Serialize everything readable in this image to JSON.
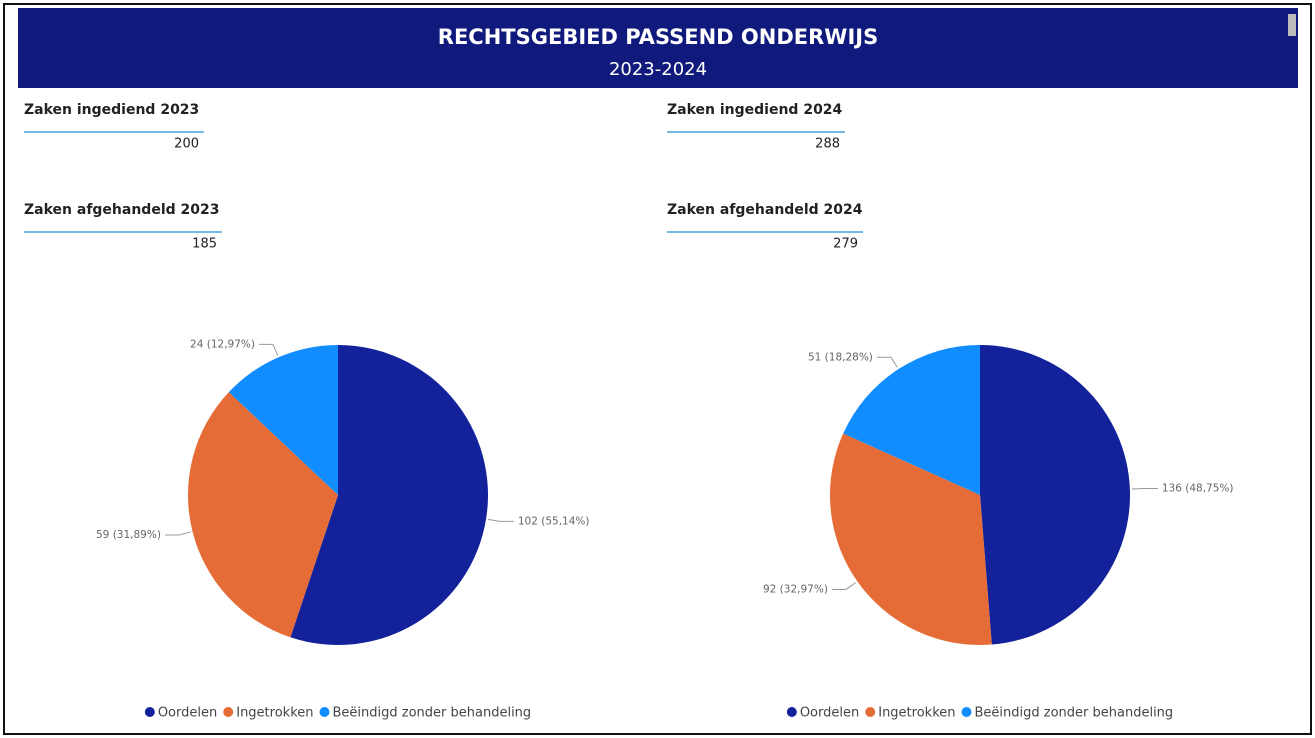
{
  "header": {
    "title": "RECHTSGEBIED PASSEND ONDERWIJS",
    "subtitle": "2023-2024"
  },
  "kpis": [
    {
      "label": "Zaken ingediend 2023",
      "value": 200
    },
    {
      "label": "Zaken afgehandeld 2023",
      "value": 185
    },
    {
      "label": "Zaken ingediend 2024",
      "value": 288
    },
    {
      "label": "Zaken afgehandeld 2024",
      "value": 279
    }
  ],
  "chart_data": [
    {
      "type": "pie",
      "categories": [
        "Oordelen",
        "Ingetrokken",
        "Beëindigd zonder behandeling"
      ],
      "values": [
        102,
        59,
        24
      ],
      "value_labels": [
        "102 (55,14%)",
        "59 (31,89%)",
        "24 (12,97%)"
      ],
      "colors": [
        "#13229b",
        "#e66c37",
        "#118dff"
      ]
    },
    {
      "type": "pie",
      "categories": [
        "Oordelen",
        "Ingetrokken",
        "Beëindigd zonder behandeling"
      ],
      "values": [
        136,
        92,
        51
      ],
      "value_labels": [
        "136 (48,75%)",
        "92 (32,97%)",
        "51 (18,28%)"
      ],
      "colors": [
        "#13229b",
        "#e66c37",
        "#118dff"
      ]
    }
  ]
}
